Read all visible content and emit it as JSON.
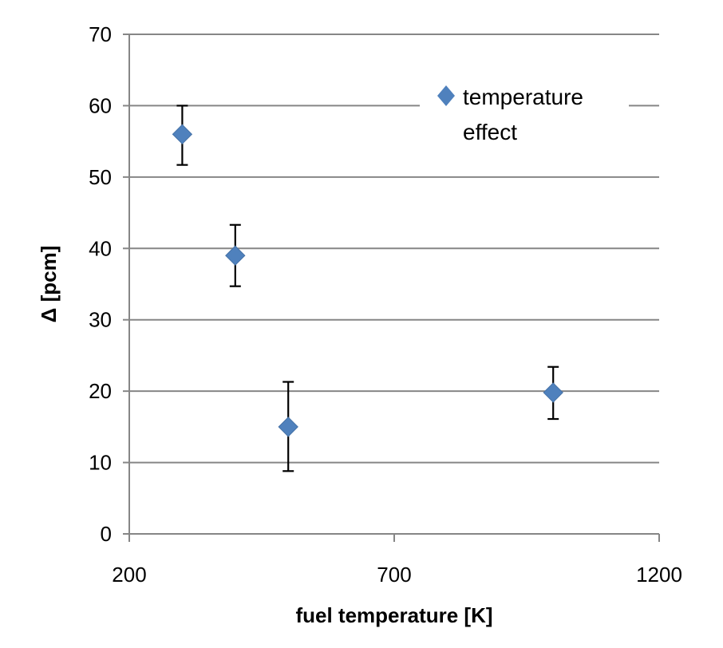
{
  "chart_data": {
    "type": "scatter",
    "title": "",
    "xlabel": "fuel temperature [K]",
    "ylabel": "Δ [pcm]",
    "xlim": [
      200,
      1200
    ],
    "ylim": [
      0,
      70
    ],
    "xticks": [
      200,
      700,
      1200
    ],
    "yticks": [
      0,
      10,
      20,
      30,
      40,
      50,
      60,
      70
    ],
    "grid": "horizontal major",
    "legend_position": "top-right",
    "series": [
      {
        "name": "temperature effect",
        "color": "#4F81BD",
        "marker": "diamond",
        "points": [
          {
            "x": 300,
            "y": 56,
            "err_low": 51.7,
            "err_high": 60
          },
          {
            "x": 400,
            "y": 39,
            "err_low": 34.7,
            "err_high": 43.3
          },
          {
            "x": 500,
            "y": 15,
            "err_low": 8.8,
            "err_high": 21.3
          },
          {
            "x": 1000,
            "y": 19.8,
            "err_low": 16.1,
            "err_high": 23.4
          }
        ]
      }
    ],
    "legend": {
      "lines": [
        "temperature",
        "effect"
      ]
    }
  }
}
